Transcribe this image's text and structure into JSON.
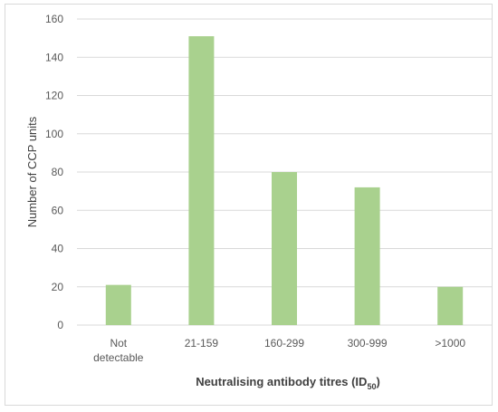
{
  "chart_data": {
    "type": "bar",
    "categories": [
      "Not detectable",
      "21-159",
      "160-299",
      "300-999",
      ">1000"
    ],
    "category_lines": [
      [
        "Not",
        "detectable"
      ],
      [
        "21-159"
      ],
      [
        "160-299"
      ],
      [
        "300-999"
      ],
      [
        ">1000"
      ]
    ],
    "values": [
      21,
      151,
      80,
      72,
      20
    ],
    "title": "",
    "xlabel": "Neutralising antibody titres (ID",
    "xlabel_subscript": "50",
    "xlabel_suffix": ")",
    "ylabel": "Number of CCP units",
    "ylim": [
      0,
      160
    ],
    "yticks": [
      0,
      20,
      40,
      60,
      80,
      100,
      120,
      140,
      160
    ],
    "grid": true,
    "bar_color": "#a9d18e",
    "grid_color": "#d9d9d9"
  }
}
